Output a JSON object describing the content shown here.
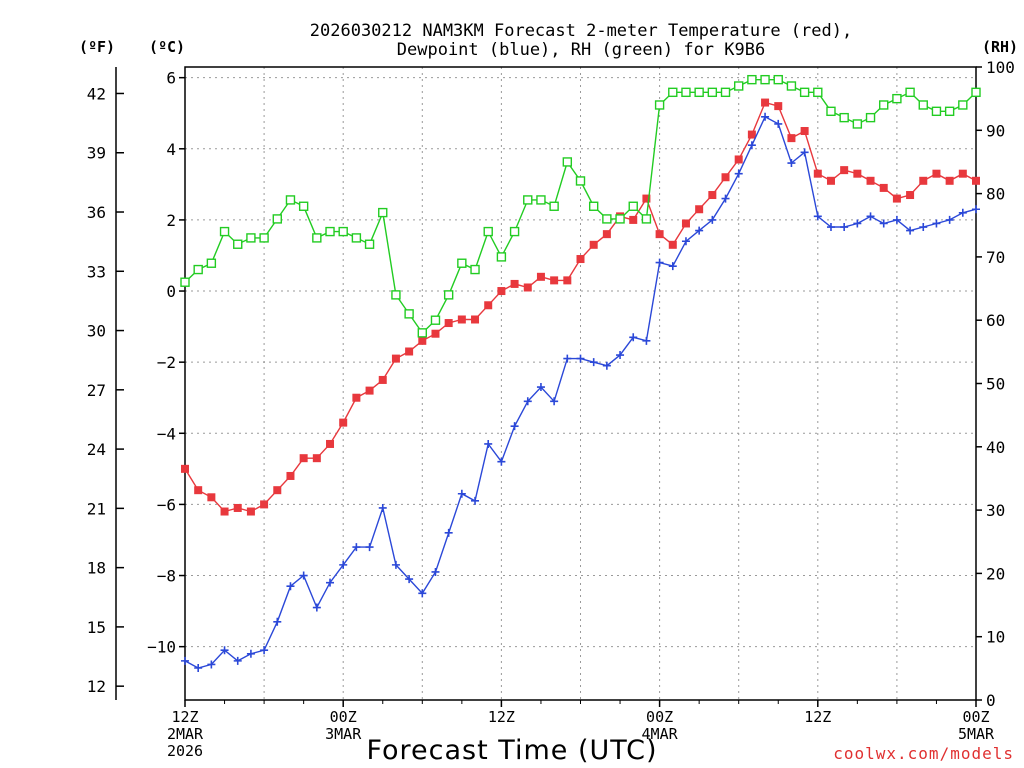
{
  "chart_data": {
    "type": "line",
    "title_lines": [
      "2026030212 NAM3KM Forecast 2-meter Temperature (red),",
      "Dewpoint (blue), RH (green) for K9B6"
    ],
    "left_outer_unit": "(ºF)",
    "left_inner_unit": "(ºC)",
    "right_unit": "(RH)",
    "xlabel": "Forecast Time (UTC)",
    "credit": "coolwx.com/models",
    "x_range_hours": [
      0,
      60
    ],
    "celsius_range": [
      -11.5,
      6.3
    ],
    "rh_range": [
      0,
      100
    ],
    "celsius_ticks": [
      "6",
      "4",
      "2",
      "0",
      "−2",
      "−4",
      "−6",
      "−8",
      "−10"
    ],
    "celsius_tick_values": [
      6,
      4,
      2,
      0,
      -2,
      -4,
      -6,
      -8,
      -10
    ],
    "fahrenheit_ticks": [
      "42",
      "39",
      "36",
      "33",
      "30",
      "27",
      "24",
      "21",
      "18",
      "15",
      "12"
    ],
    "fahrenheit_tick_values": [
      42,
      39,
      36,
      33,
      30,
      27,
      24,
      21,
      18,
      15,
      12
    ],
    "rh_ticks": [
      "100",
      "90",
      "80",
      "70",
      "60",
      "50",
      "40",
      "30",
      "20",
      "10",
      "0"
    ],
    "rh_tick_values": [
      100,
      90,
      80,
      70,
      60,
      50,
      40,
      30,
      20,
      10,
      0
    ],
    "x_ticks": [
      {
        "hour": 0,
        "lines": [
          "12Z",
          "2MAR",
          "2026"
        ]
      },
      {
        "hour": 12,
        "lines": [
          "00Z",
          "3MAR"
        ]
      },
      {
        "hour": 24,
        "lines": [
          "12Z"
        ]
      },
      {
        "hour": 36,
        "lines": [
          "00Z",
          "4MAR"
        ]
      },
      {
        "hour": 48,
        "lines": [
          "12Z"
        ]
      },
      {
        "hour": 60,
        "lines": [
          "00Z",
          "5MAR"
        ]
      }
    ],
    "series": [
      {
        "name": "Temperature",
        "color": "#e8383d",
        "marker": "filled-square",
        "axis": "celsius",
        "x": [
          0,
          1,
          2,
          3,
          4,
          5,
          6,
          7,
          8,
          9,
          10,
          11,
          12,
          13,
          14,
          15,
          16,
          17,
          18,
          19,
          20,
          21,
          22,
          23,
          24,
          25,
          26,
          27,
          28,
          29,
          30,
          31,
          32,
          33,
          34,
          35,
          36,
          37,
          38,
          39,
          40,
          41,
          42,
          43,
          44,
          45,
          46,
          47,
          48,
          49,
          50,
          51,
          52,
          53,
          54,
          55,
          56,
          57,
          58,
          59,
          60
        ],
        "values": [
          -5.0,
          -5.6,
          -5.8,
          -6.2,
          -6.1,
          -6.2,
          -6.0,
          -5.6,
          -5.2,
          -4.7,
          -4.7,
          -4.3,
          -3.7,
          -3.0,
          -2.8,
          -2.5,
          -1.9,
          -1.7,
          -1.4,
          -1.2,
          -0.9,
          -0.8,
          -0.8,
          -0.4,
          0.0,
          0.2,
          0.1,
          0.4,
          0.3,
          0.3,
          0.9,
          1.3,
          1.6,
          2.1,
          2.0,
          2.6,
          1.6,
          1.3,
          1.9,
          2.3,
          2.7,
          3.2,
          3.7,
          4.4,
          5.3,
          5.2,
          4.3,
          4.5,
          3.3,
          3.1,
          3.4,
          3.3,
          3.1,
          2.9,
          2.6,
          2.7,
          3.1,
          3.3,
          3.1,
          3.3,
          3.1
        ]
      },
      {
        "name": "Dewpoint",
        "color": "#2b48d8",
        "marker": "plus",
        "axis": "celsius",
        "x": [
          0,
          1,
          2,
          3,
          4,
          5,
          6,
          7,
          8,
          9,
          10,
          11,
          12,
          13,
          14,
          15,
          16,
          17,
          18,
          19,
          20,
          21,
          22,
          23,
          24,
          25,
          26,
          27,
          28,
          29,
          30,
          31,
          32,
          33,
          34,
          35,
          36,
          37,
          38,
          39,
          40,
          41,
          42,
          43,
          44,
          45,
          46,
          47,
          48,
          49,
          50,
          51,
          52,
          53,
          54,
          55,
          56,
          57,
          58,
          59,
          60
        ],
        "values": [
          -10.4,
          -10.6,
          -10.5,
          -10.1,
          -10.4,
          -10.2,
          -10.1,
          -9.3,
          -8.3,
          -8.0,
          -8.9,
          -8.2,
          -7.7,
          -7.2,
          -7.2,
          -6.1,
          -7.7,
          -8.1,
          -8.5,
          -7.9,
          -6.8,
          -5.7,
          -5.9,
          -4.3,
          -4.8,
          -3.8,
          -3.1,
          -2.7,
          -3.1,
          -1.9,
          -1.9,
          -2.0,
          -2.1,
          -1.8,
          -1.3,
          -1.4,
          0.8,
          0.7,
          1.4,
          1.7,
          2.0,
          2.6,
          3.3,
          4.1,
          4.9,
          4.7,
          3.6,
          3.9,
          2.1,
          1.8,
          1.8,
          1.9,
          2.1,
          1.9,
          2.0,
          1.7,
          1.8,
          1.9,
          2.0,
          2.2,
          2.3
        ]
      },
      {
        "name": "RH",
        "color": "#22cc22",
        "marker": "open-square",
        "axis": "rh",
        "x": [
          0,
          1,
          2,
          3,
          4,
          5,
          6,
          7,
          8,
          9,
          10,
          11,
          12,
          13,
          14,
          15,
          16,
          17,
          18,
          19,
          20,
          21,
          22,
          23,
          24,
          25,
          26,
          27,
          28,
          29,
          30,
          31,
          32,
          33,
          34,
          35,
          36,
          37,
          38,
          39,
          40,
          41,
          42,
          43,
          44,
          45,
          46,
          47,
          48,
          49,
          50,
          51,
          52,
          53,
          54,
          55,
          56,
          57,
          58,
          59,
          60
        ],
        "values": [
          66,
          68,
          69,
          74,
          72,
          73,
          73,
          76,
          79,
          78,
          73,
          74,
          74,
          73,
          72,
          77,
          64,
          61,
          58,
          60,
          64,
          69,
          68,
          74,
          70,
          74,
          79,
          79,
          78,
          85,
          82,
          78,
          76,
          76,
          78,
          76,
          94,
          96,
          96,
          96,
          96,
          96,
          97,
          98,
          98,
          98,
          97,
          96,
          96,
          93,
          92,
          91,
          92,
          94,
          95,
          96,
          94,
          93,
          93,
          94,
          96
        ]
      }
    ]
  }
}
